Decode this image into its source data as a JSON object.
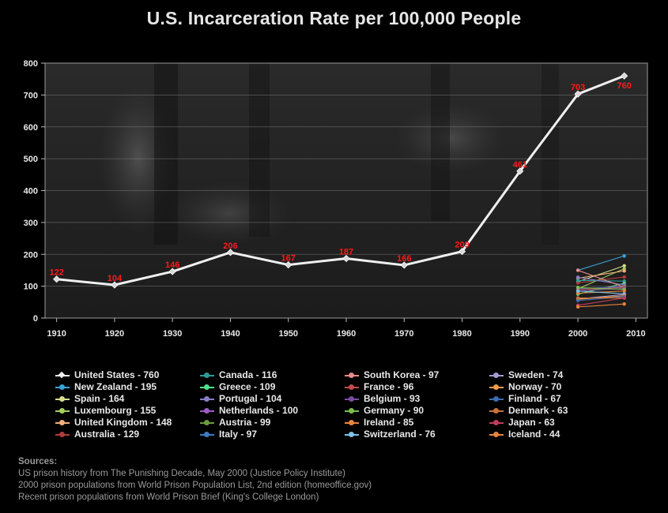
{
  "title": "U.S. Incarceration Rate per 100,000 People",
  "chart_data": {
    "type": "line",
    "title": "U.S. Incarceration Rate per 100,000 People",
    "xlabel": "",
    "ylabel": "",
    "xlim": [
      1908,
      2012
    ],
    "ylim": [
      0,
      800
    ],
    "x_ticks": [
      1910,
      1920,
      1930,
      1940,
      1950,
      1960,
      1970,
      1980,
      1990,
      2000,
      2010
    ],
    "y_ticks": [
      0,
      100,
      200,
      300,
      400,
      500,
      600,
      700,
      800
    ],
    "grid": "horizontal",
    "legend_position": "bottom",
    "series": [
      {
        "name": "United States - 760",
        "color": "#f0f0f0",
        "x": [
          1910,
          1920,
          1930,
          1940,
          1950,
          1960,
          1970,
          1980,
          1990,
          2000,
          2008
        ],
        "values": [
          122,
          104,
          146,
          206,
          167,
          187,
          166,
          209,
          461,
          703,
          760
        ],
        "labels": [
          "122",
          "104",
          "146",
          "206",
          "167",
          "187",
          "166",
          "209",
          "461",
          "703",
          "760"
        ]
      },
      {
        "name": "New Zealand - 195",
        "color": "#3aa3d8",
        "x": [
          2000,
          2008
        ],
        "values": [
          150,
          195
        ]
      },
      {
        "name": "Spain - 164",
        "color": "#d8dc8c",
        "x": [
          2000,
          2008
        ],
        "values": [
          114,
          164
        ]
      },
      {
        "name": "Luxembourg - 155",
        "color": "#a4cf5c",
        "x": [
          2000,
          2008
        ],
        "values": [
          92,
          155
        ]
      },
      {
        "name": "United Kingdom - 148",
        "color": "#f4b078",
        "x": [
          2000,
          2008
        ],
        "values": [
          125,
          148
        ]
      },
      {
        "name": "Australia - 129",
        "color": "#b03c3c",
        "x": [
          2000,
          2008
        ],
        "values": [
          110,
          129
        ]
      },
      {
        "name": "Canada - 116",
        "color": "#2e9a9a",
        "x": [
          2000,
          2008
        ],
        "values": [
          118,
          116
        ]
      },
      {
        "name": "Greece - 109",
        "color": "#4ce08a",
        "x": [
          2000,
          2008
        ],
        "values": [
          75,
          109
        ]
      },
      {
        "name": "Portugal - 104",
        "color": "#8c7cc8",
        "x": [
          2000,
          2008
        ],
        "values": [
          128,
          104
        ]
      },
      {
        "name": "Netherlands - 100",
        "color": "#9c5cc4",
        "x": [
          2000,
          2008
        ],
        "values": [
          90,
          100
        ]
      },
      {
        "name": "Austria - 99",
        "color": "#6c9c3c",
        "x": [
          2000,
          2008
        ],
        "values": [
          84,
          99
        ]
      },
      {
        "name": "Italy - 97",
        "color": "#3c7cc4",
        "x": [
          2000,
          2008
        ],
        "values": [
          93,
          97
        ]
      },
      {
        "name": "South Korea - 97",
        "color": "#e88c8c",
        "x": [
          2000,
          2008
        ],
        "values": [
          150,
          97
        ]
      },
      {
        "name": "France - 96",
        "color": "#c44c4c",
        "x": [
          2000,
          2008
        ],
        "values": [
          90,
          96
        ]
      },
      {
        "name": "Belgium - 93",
        "color": "#7c4ca4",
        "x": [
          2000,
          2008
        ],
        "values": [
          85,
          93
        ]
      },
      {
        "name": "Germany - 90",
        "color": "#7cbc4c",
        "x": [
          2000,
          2008
        ],
        "values": [
          96,
          90
        ]
      },
      {
        "name": "Ireland - 85",
        "color": "#e8843c",
        "x": [
          2000,
          2008
        ],
        "values": [
          78,
          85
        ]
      },
      {
        "name": "Switzerland - 76",
        "color": "#7cc4e8",
        "x": [
          2000,
          2008
        ],
        "values": [
          85,
          76
        ]
      },
      {
        "name": "Sweden - 74",
        "color": "#a49cd4",
        "x": [
          2000,
          2008
        ],
        "values": [
          60,
          74
        ]
      },
      {
        "name": "Norway - 70",
        "color": "#f49c4c",
        "x": [
          2000,
          2008
        ],
        "values": [
          59,
          70
        ]
      },
      {
        "name": "Finland - 67",
        "color": "#3c6cb4",
        "x": [
          2000,
          2008
        ],
        "values": [
          55,
          67
        ]
      },
      {
        "name": "Denmark - 63",
        "color": "#c8743c",
        "x": [
          2000,
          2008
        ],
        "values": [
          63,
          63
        ]
      },
      {
        "name": "Japan - 63",
        "color": "#c43c5c",
        "x": [
          2000,
          2008
        ],
        "values": [
          40,
          63
        ]
      },
      {
        "name": "Iceland - 44",
        "color": "#e8843c",
        "x": [
          2000,
          2008
        ],
        "values": [
          35,
          44
        ]
      }
    ]
  },
  "sources": {
    "heading": "Sources:",
    "lines": [
      "US prison history from The Punishing Decade, May 2000 (Justice Policy Institute)",
      "2000 prison populations from World Prison Population List, 2nd edition (homeoffice.gov)",
      "Recent prison populations from World Prison Brief (King's College London)"
    ]
  }
}
